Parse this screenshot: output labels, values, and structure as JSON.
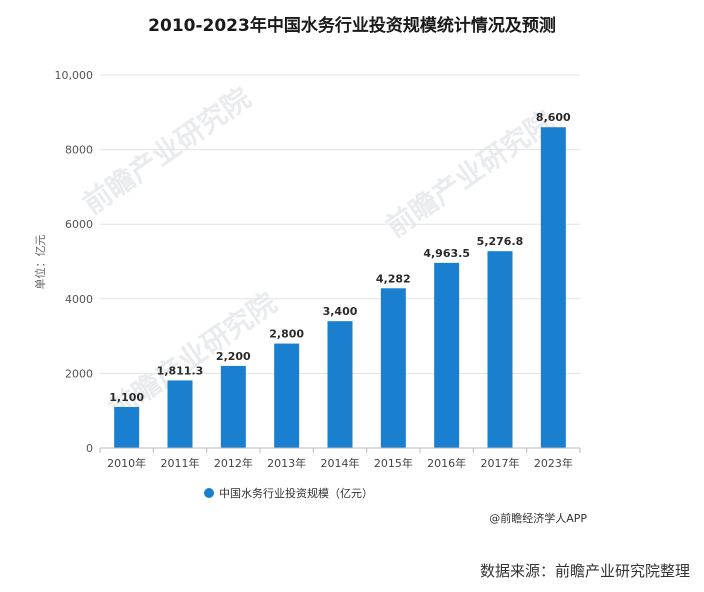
{
  "colors": {
    "bar": "#1a7fcf",
    "grid": "#e3e3e3",
    "axis": "#bbbbbb",
    "watermark": "#e9ebee"
  },
  "watermark_text": "前瞻产业研究院",
  "credit": "@前瞻经济学人APP",
  "source": "数据来源：前瞻产业研究院整理",
  "chart_data": {
    "type": "bar",
    "title": "2010-2023年中国水务行业投资规模统计情况及预测",
    "ylabel": "单位：亿元",
    "xlabel": "",
    "categories": [
      "2010年",
      "2011年",
      "2012年",
      "2013年",
      "2014年",
      "2015年",
      "2016年",
      "2017年",
      "2023年"
    ],
    "series": [
      {
        "name": "中国水务行业投资规模（亿元）",
        "values": [
          1100,
          1811.3,
          2200,
          2800,
          3400,
          4282,
          4963.5,
          5276.8,
          8600
        ],
        "labels": [
          "1,100",
          "1,811.3",
          "2,200",
          "2,800",
          "3,400",
          "4,282",
          "4,963.5",
          "5,276.8",
          "8,600"
        ]
      }
    ],
    "ylim": [
      0,
      10000
    ],
    "yticks": [
      0,
      2000,
      4000,
      6000,
      8000,
      10000
    ],
    "ytick_labels": [
      "0",
      "2000",
      "4000",
      "6000",
      "8000",
      "10,000"
    ],
    "grid": true,
    "legend": "bottom-center"
  }
}
